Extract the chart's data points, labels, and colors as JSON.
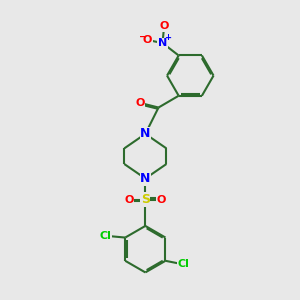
{
  "background_color": "#e8e8e8",
  "bond_color": "#2d6b2d",
  "bond_width": 1.5,
  "atom_colors": {
    "N": "#0000ff",
    "O": "#ff0000",
    "S": "#cccc00",
    "Cl": "#00cc00",
    "C": "#2d6b2d"
  },
  "figsize": [
    3.0,
    3.0
  ],
  "dpi": 100
}
